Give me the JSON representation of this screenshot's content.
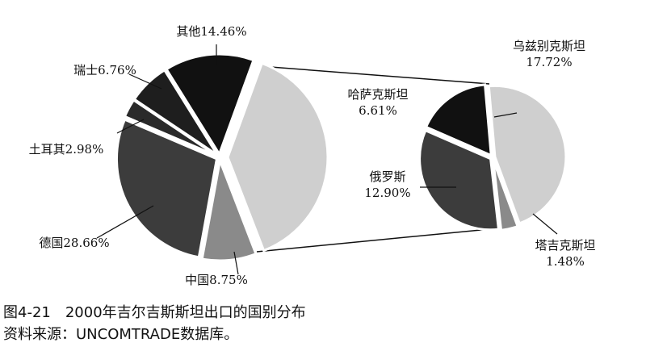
{
  "chart_data": [
    {
      "type": "pie",
      "values": [
        38.71,
        8.75,
        28.66,
        2.98,
        6.76,
        14.46
      ],
      "value_labels": [
        null,
        "中国8.75%",
        "德国28.66%",
        "土耳其2.98%",
        "瑞士6.76%",
        "其他14.46%"
      ],
      "colors": [
        "#cfcfcf",
        "#8a8a8a",
        "#3c3c3c",
        "#2a2a2a",
        "#1e1e1e",
        "#111111"
      ]
    },
    {
      "type": "pie",
      "names": [
        "乌兹别克斯坦",
        "塔吉克斯坦",
        "俄罗斯",
        "哈萨克斯坦"
      ],
      "values": [
        17.72,
        1.48,
        12.9,
        6.61
      ],
      "value_labels": [
        "17.72%",
        "1.48%",
        "12.90%",
        "6.61%"
      ],
      "colors": [
        "#cfcfcf",
        "#8a8a8a",
        "#3c3c3c",
        "#111111"
      ]
    }
  ],
  "caption": "图4-21　2000年吉尔吉斯斯坦出口的国别分布",
  "source": "资料来源：UNCOMTRADE数据库。"
}
